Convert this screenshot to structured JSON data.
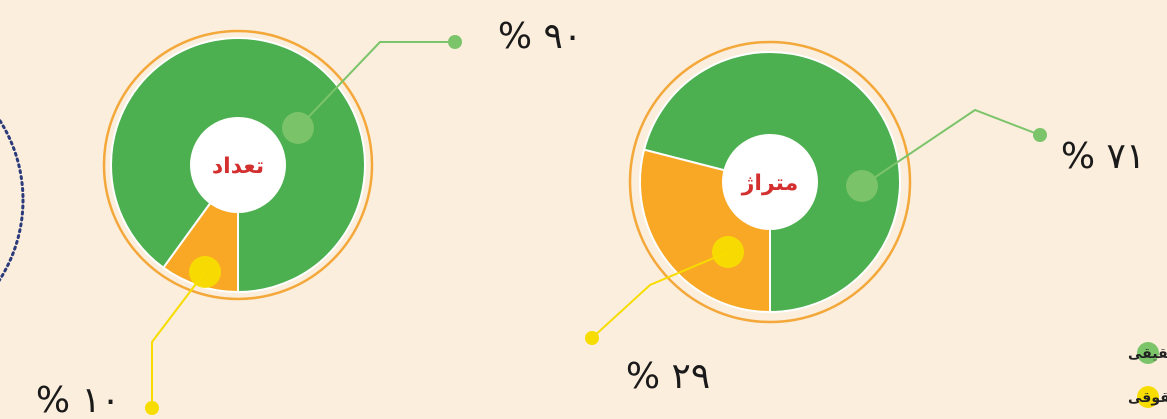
{
  "chart_data": [
    {
      "type": "pie",
      "title": "تعداد",
      "values": [
        90,
        10
      ],
      "value_labels": [
        "% ۹۰",
        "% ۱۰"
      ],
      "colors": [
        "#4caf50",
        "#f9a825"
      ]
    },
    {
      "type": "pie",
      "title": "متراژ",
      "values": [
        71,
        29
      ],
      "value_labels": [
        "% ۷۱",
        "% ۲۹"
      ],
      "colors": [
        "#4caf50",
        "#f9a825"
      ]
    }
  ],
  "legend": {
    "items": [
      {
        "name": "نظارت حقیقی",
        "color": "#7cc46a"
      },
      {
        "name": "نظارت حقوقی",
        "color": "#f7dc00"
      }
    ]
  }
}
